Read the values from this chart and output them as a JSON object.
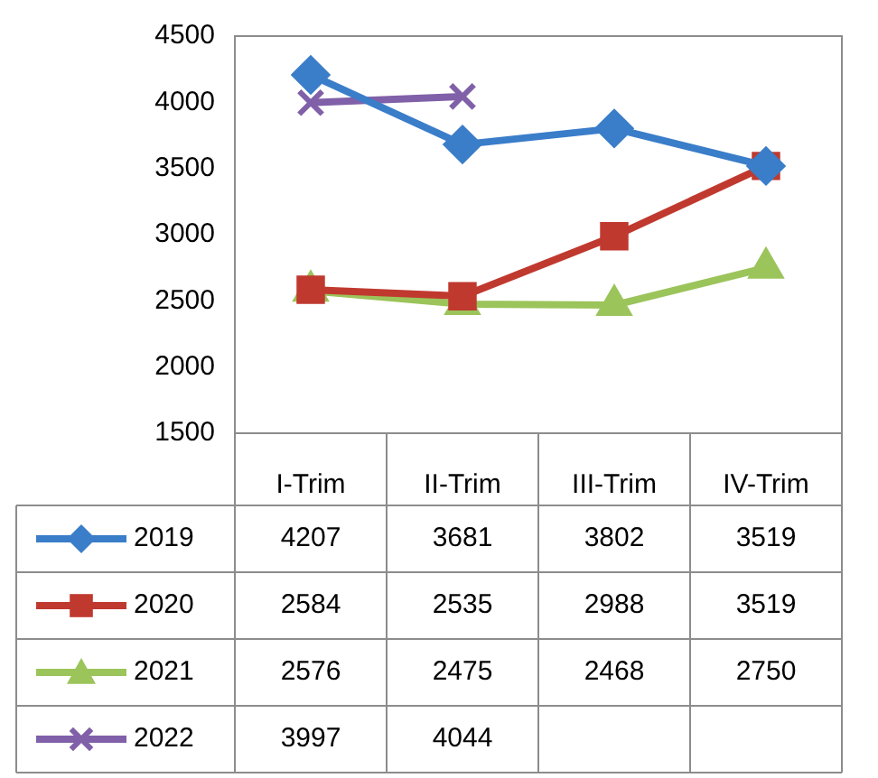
{
  "chart_data": {
    "type": "line",
    "categories": [
      "I-Trim",
      "II-Trim",
      "III-Trim",
      "IV-Trim"
    ],
    "series": [
      {
        "name": "2019",
        "color": "#3a7dc9",
        "marker": "diamond",
        "values": [
          4207,
          3681,
          3802,
          3519
        ]
      },
      {
        "name": "2020",
        "color": "#c0392f",
        "marker": "square",
        "values": [
          2584,
          2535,
          2988,
          3519
        ]
      },
      {
        "name": "2021",
        "color": "#9bc45a",
        "marker": "triangle",
        "values": [
          2576,
          2475,
          2468,
          2750
        ]
      },
      {
        "name": "2022",
        "color": "#8060a8",
        "marker": "cross",
        "values": [
          3997,
          4044,
          null,
          null
        ]
      }
    ],
    "ylim": [
      1500,
      4500
    ],
    "yticks": [
      1500,
      2000,
      2500,
      3000,
      3500,
      4000,
      4500
    ],
    "data_labels": true,
    "legend": "bottom left",
    "line_style": "solid"
  }
}
